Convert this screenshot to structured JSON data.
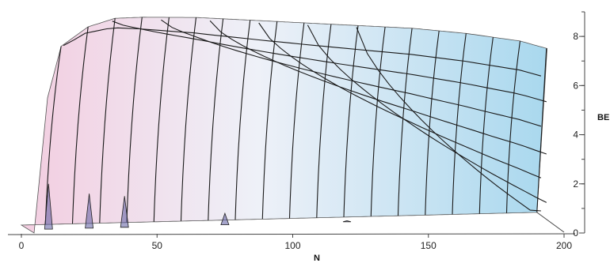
{
  "chart_data": {
    "type": "surface",
    "title": "",
    "xlabel": "N",
    "zlabel": "BE",
    "xlim": [
      0,
      200
    ],
    "zlim": [
      0,
      9
    ],
    "x_ticks": [
      {
        "value": 0,
        "label": "0"
      },
      {
        "value": 50,
        "label": "50"
      },
      {
        "value": 100,
        "label": "100"
      },
      {
        "value": 150,
        "label": "150"
      },
      {
        "value": 200,
        "label": "200"
      }
    ],
    "z_ticks": [
      {
        "value": 0,
        "label": "0"
      },
      {
        "value": 2,
        "label": "2"
      },
      {
        "value": 4,
        "label": "4"
      },
      {
        "value": 6,
        "label": "6"
      },
      {
        "value": 8,
        "label": "8"
      }
    ],
    "ridge_profile": {
      "N": [
        0,
        5,
        10,
        20,
        30,
        40,
        60,
        80,
        100,
        120,
        140,
        160,
        180,
        190
      ],
      "BE_max": [
        0,
        5.5,
        7.6,
        8.4,
        8.75,
        8.8,
        8.8,
        8.7,
        8.6,
        8.5,
        8.4,
        8.2,
        7.9,
        7.6
      ]
    },
    "spikes": [
      {
        "N": 10,
        "BE": 2.0
      },
      {
        "N": 25,
        "BE": 1.6
      },
      {
        "N": 38,
        "BE": 1.5
      },
      {
        "N": 75,
        "BE": 0.8
      },
      {
        "N": 120,
        "BE": 0.5
      }
    ],
    "colors": {
      "surface_left": "#f3cde0",
      "surface_mid": "#eef1f8",
      "surface_right": "#a9d8ee",
      "mesh": "#1a1a1a",
      "spike": "#5c5ba0"
    }
  }
}
